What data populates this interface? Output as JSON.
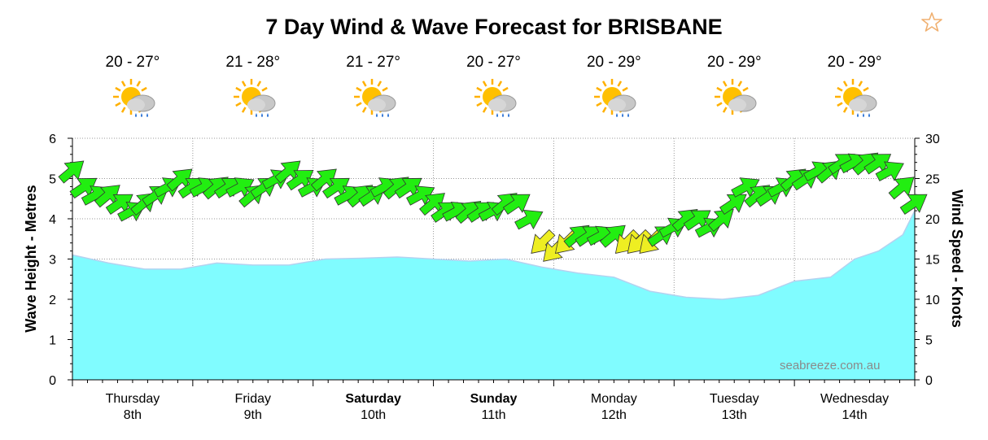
{
  "title": "7 Day Wind & Wave Forecast for BRISBANE",
  "favorite_icon": "star-outline-icon",
  "watermark": "seabreeze.com.au",
  "days": [
    {
      "name": "Thursday",
      "date": "8th",
      "temp": "20 - 27°",
      "icon": "partly-sunny-showers-icon",
      "bold": false
    },
    {
      "name": "Friday",
      "date": "9th",
      "temp": "21 - 28°",
      "icon": "partly-sunny-showers-icon",
      "bold": false
    },
    {
      "name": "Saturday",
      "date": "10th",
      "temp": "21 - 27°",
      "icon": "partly-sunny-showers-icon",
      "bold": true
    },
    {
      "name": "Sunday",
      "date": "11th",
      "temp": "20 - 27°",
      "icon": "partly-sunny-showers-icon",
      "bold": true
    },
    {
      "name": "Monday",
      "date": "12th",
      "temp": "20 - 29°",
      "icon": "partly-sunny-showers-icon",
      "bold": false
    },
    {
      "name": "Tuesday",
      "date": "13th",
      "temp": "20 - 29°",
      "icon": "partly-cloudy-icon",
      "bold": false
    },
    {
      "name": "Wednesday",
      "date": "14th",
      "temp": "20 - 29°",
      "icon": "partly-sunny-showers-icon",
      "bold": false
    }
  ],
  "colors": {
    "wave_fill": "#80FCFF",
    "wave_line": "#B4D2F0",
    "arrow_green": "#22EE11",
    "arrow_yellow": "#EEEE22",
    "grid": "#999999"
  },
  "chart_data": {
    "type": "area",
    "title": "7 Day Wind & Wave Forecast for BRISBANE",
    "ylabel": "Wave Height - Metres",
    "ylabel_right": "Wind Speed - Knots",
    "ylim": [
      0,
      6
    ],
    "ylim_right": [
      0,
      30
    ],
    "yticks": [
      0,
      1,
      2,
      3,
      4,
      5,
      6
    ],
    "yticks_right": [
      0,
      5,
      10,
      15,
      20,
      25,
      30
    ],
    "x_unit": "days from Thursday 00:00",
    "xlim": [
      0,
      7
    ],
    "grid": true,
    "series": [
      {
        "name": "Wave Height",
        "axis": "left",
        "x": [
          0,
          0.3,
          0.6,
          0.9,
          1.2,
          1.5,
          1.8,
          2.1,
          2.4,
          2.7,
          3.0,
          3.3,
          3.6,
          3.9,
          4.2,
          4.5,
          4.8,
          5.1,
          5.4,
          5.7,
          6.0,
          6.3,
          6.5,
          6.7,
          6.9,
          7.0
        ],
        "values": [
          3.1,
          2.9,
          2.75,
          2.75,
          2.9,
          2.85,
          2.85,
          3.0,
          3.02,
          3.05,
          3.0,
          2.95,
          3.0,
          2.8,
          2.65,
          2.55,
          2.2,
          2.05,
          2.0,
          2.1,
          2.45,
          2.55,
          3.0,
          3.2,
          3.6,
          4.2
        ]
      },
      {
        "name": "Wind Speed",
        "axis": "right",
        "x": [
          0.0,
          0.1,
          0.2,
          0.3,
          0.4,
          0.5,
          0.6,
          0.7,
          0.8,
          0.9,
          1.0,
          1.1,
          1.2,
          1.3,
          1.4,
          1.5,
          1.6,
          1.7,
          1.8,
          1.9,
          2.0,
          2.1,
          2.2,
          2.3,
          2.4,
          2.5,
          2.6,
          2.7,
          2.8,
          2.9,
          3.0,
          3.1,
          3.2,
          3.3,
          3.4,
          3.5,
          3.6,
          3.7,
          3.8,
          3.9,
          4.0,
          4.1,
          4.2,
          4.3,
          4.4,
          4.5,
          4.6,
          4.7,
          4.8,
          4.9,
          5.0,
          5.1,
          5.2,
          5.3,
          5.4,
          5.5,
          5.6,
          5.7,
          5.8,
          5.9,
          6.0,
          6.1,
          6.2,
          6.3,
          6.4,
          6.5,
          6.6,
          6.7,
          6.8,
          6.9,
          7.0
        ],
        "values": [
          26,
          24,
          23,
          23,
          22,
          21,
          22,
          23,
          24,
          25,
          24,
          24,
          24,
          24,
          24,
          23,
          24,
          25,
          26,
          25,
          24,
          25,
          24,
          23,
          23,
          23,
          24,
          24,
          24,
          23,
          22,
          21,
          21,
          21,
          21,
          21,
          22,
          22,
          20,
          17,
          16,
          17,
          18,
          18,
          18,
          18,
          17,
          17,
          17,
          18,
          19,
          20,
          20,
          19,
          20,
          22,
          24,
          23,
          23,
          24,
          25,
          25,
          26,
          26,
          27,
          27,
          27,
          27,
          26,
          24,
          22
        ]
      }
    ]
  }
}
